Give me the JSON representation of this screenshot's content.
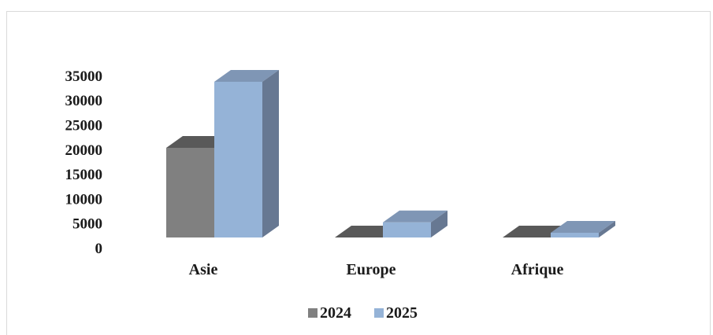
{
  "chart_data": {
    "type": "bar",
    "three_d": true,
    "title": "",
    "xlabel": "",
    "ylabel": "",
    "categories": [
      "Asie",
      "Europe",
      "Afrique"
    ],
    "series": [
      {
        "name": "2024",
        "values": [
          19000,
          0,
          0
        ],
        "color": "#808080",
        "top_color": "#595959",
        "side_color": "#505050"
      },
      {
        "name": "2025",
        "values": [
          33000,
          3200,
          1000
        ],
        "color": "#95b3d7",
        "top_color": "#7f96b5",
        "side_color": "#677892"
      }
    ],
    "ylim": [
      0,
      35000
    ],
    "yticks": [
      "0",
      "5000",
      "10000",
      "15000",
      "20000",
      "25000",
      "30000",
      "35000"
    ],
    "gridlines": false,
    "legend_position": "bottom"
  }
}
